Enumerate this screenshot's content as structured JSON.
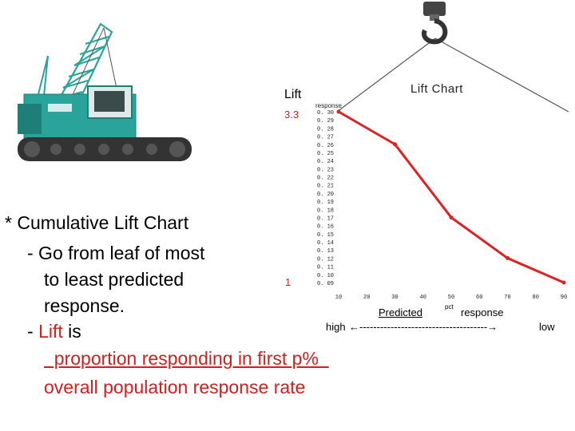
{
  "slide": {
    "bullet": "* Cumulative Lift Chart",
    "sub1_dash": "- Go from leaf of most",
    "sub1_line2": "to least predicted",
    "sub1_line3": "response.",
    "sub2_prefix": "- ",
    "sub2_word": "Lift",
    "sub2_rest": " is",
    "formula_numerator": "proportion responding in first p%",
    "formula_denominator": "overall population response rate"
  },
  "annotations": {
    "lift_label": "Lift",
    "lift_max": "3.3",
    "lift_min": "1",
    "predicted": "Predicted",
    "pct": "pct",
    "response": "response",
    "high": "high",
    "arrow": "←-------------------------------------→",
    "low": "low"
  },
  "chart_data": {
    "type": "line",
    "title": "Lift Chart",
    "ylabel": "response",
    "xlabel": "",
    "x_ticks": [
      10,
      20,
      30,
      40,
      50,
      60,
      70,
      80,
      90
    ],
    "y_ticks": [
      "0.09",
      "0.10",
      "0.11",
      "0.12",
      "0.13",
      "0.14",
      "0.15",
      "0.16",
      "0.17",
      "0.18",
      "0.19",
      "0.20",
      "0.21",
      "0.22",
      "0.23",
      "0.24",
      "0.25",
      "0.26",
      "0.27",
      "0.28",
      "0.29",
      "0.30"
    ],
    "xlim": [
      10,
      90
    ],
    "ylim": [
      0.09,
      0.3
    ],
    "x": [
      10,
      30,
      50,
      70,
      90
    ],
    "y": [
      0.3,
      0.26,
      0.17,
      0.12,
      0.09
    ],
    "line_color": "#dd2222",
    "grid": false
  },
  "colors": {
    "crane_body": "#2aa39a",
    "crane_dark": "#1f7f78",
    "track": "#333333",
    "hook": "#444444",
    "accent_red": "#cc2222"
  },
  "icons": {
    "crane": "crawler-crane-icon",
    "hook": "crane-hook-icon"
  }
}
